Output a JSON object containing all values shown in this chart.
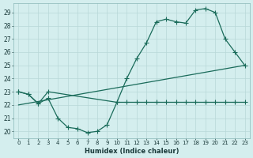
{
  "xlabel": "Humidex (Indice chaleur)",
  "background_color": "#d4eeee",
  "grid_color": "#b8d8d8",
  "line_color": "#1a6b5a",
  "xlim": [
    -0.5,
    23.5
  ],
  "ylim": [
    19.5,
    29.7
  ],
  "yticks": [
    20,
    21,
    22,
    23,
    24,
    25,
    26,
    27,
    28,
    29
  ],
  "xticks": [
    0,
    1,
    2,
    3,
    4,
    5,
    6,
    7,
    8,
    9,
    10,
    11,
    12,
    13,
    14,
    15,
    16,
    17,
    18,
    19,
    20,
    21,
    22,
    23
  ],
  "curve1_x": [
    0,
    1,
    2,
    3,
    10,
    11,
    12,
    13,
    14,
    15,
    16,
    17,
    18,
    19,
    20,
    21,
    22,
    23
  ],
  "curve1_y": [
    23.0,
    22.8,
    22.1,
    23.0,
    22.2,
    24.0,
    25.5,
    26.7,
    28.3,
    28.5,
    28.3,
    28.2,
    29.2,
    29.3,
    29.0,
    27.0,
    26.0,
    25.0
  ],
  "curve2_x": [
    0,
    1,
    2,
    3,
    4,
    5,
    6,
    7,
    8,
    9,
    10,
    11,
    12,
    13,
    14,
    15,
    16,
    17,
    18,
    19,
    20,
    21,
    22,
    23
  ],
  "curve2_y": [
    23.0,
    22.8,
    22.1,
    22.5,
    21.0,
    20.3,
    20.2,
    19.9,
    20.0,
    20.5,
    22.2,
    22.2,
    22.2,
    22.2,
    22.2,
    22.2,
    22.2,
    22.2,
    22.2,
    22.2,
    22.2,
    22.2,
    22.2,
    22.2
  ],
  "curve3_x": [
    0,
    23
  ],
  "curve3_y": [
    22.0,
    25.0
  ]
}
